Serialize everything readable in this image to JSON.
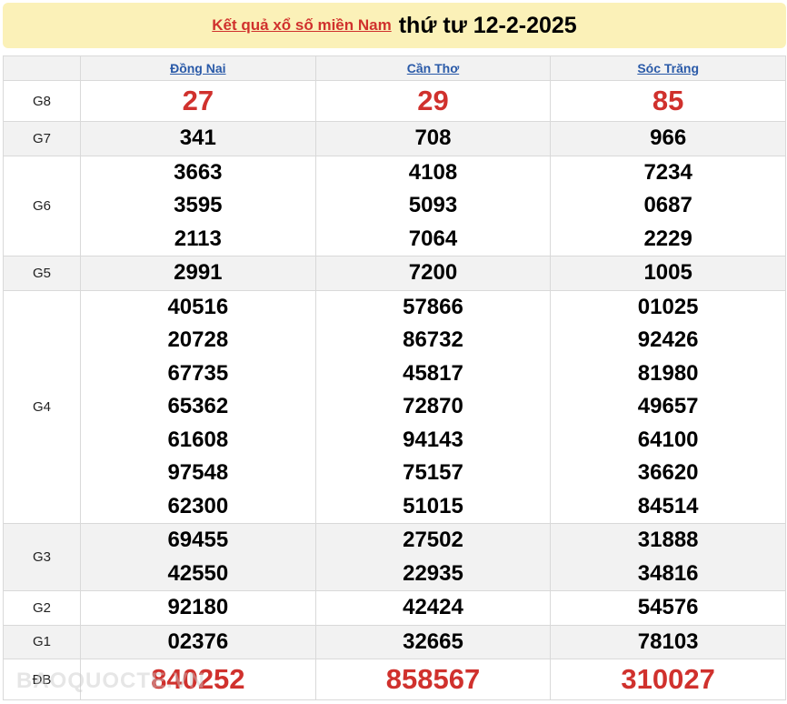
{
  "title": {
    "link": "Kết quả xổ số miền Nam",
    "date": "thứ tư 12-2-2025"
  },
  "provinces": [
    "Đồng Nai",
    "Cần Thơ",
    "Sóc Trăng"
  ],
  "prizes": [
    {
      "label": "G8",
      "style": "big",
      "gray": false,
      "values": [
        [
          "27"
        ],
        [
          "29"
        ],
        [
          "85"
        ]
      ]
    },
    {
      "label": "G7",
      "gray": true,
      "values": [
        [
          "341"
        ],
        [
          "708"
        ],
        [
          "966"
        ]
      ]
    },
    {
      "label": "G6",
      "gray": false,
      "values": [
        [
          "3663",
          "3595",
          "2113"
        ],
        [
          "4108",
          "5093",
          "7064"
        ],
        [
          "7234",
          "0687",
          "2229"
        ]
      ]
    },
    {
      "label": "G5",
      "gray": true,
      "values": [
        [
          "2991"
        ],
        [
          "7200"
        ],
        [
          "1005"
        ]
      ]
    },
    {
      "label": "G4",
      "gray": false,
      "values": [
        [
          "40516",
          "20728",
          "67735",
          "65362",
          "61608",
          "97548",
          "62300"
        ],
        [
          "57866",
          "86732",
          "45817",
          "72870",
          "94143",
          "75157",
          "51015"
        ],
        [
          "01025",
          "92426",
          "81980",
          "49657",
          "64100",
          "36620",
          "84514"
        ]
      ]
    },
    {
      "label": "G3",
      "gray": true,
      "values": [
        [
          "69455",
          "42550"
        ],
        [
          "27502",
          "22935"
        ],
        [
          "31888",
          "34816"
        ]
      ]
    },
    {
      "label": "G2",
      "gray": false,
      "values": [
        [
          "92180"
        ],
        [
          "42424"
        ],
        [
          "54576"
        ]
      ]
    },
    {
      "label": "G1",
      "gray": true,
      "values": [
        [
          "02376"
        ],
        [
          "32665"
        ],
        [
          "78103"
        ]
      ]
    },
    {
      "label": "ĐB",
      "style": "big",
      "gray": false,
      "values": [
        [
          "840252"
        ],
        [
          "858567"
        ],
        [
          "310027"
        ]
      ]
    }
  ],
  "watermark": "BAOQUOCTE.VN",
  "colors": {
    "accent": "#d0312d",
    "header_bg": "#fbf1b8",
    "link": "#2a5aa8"
  }
}
